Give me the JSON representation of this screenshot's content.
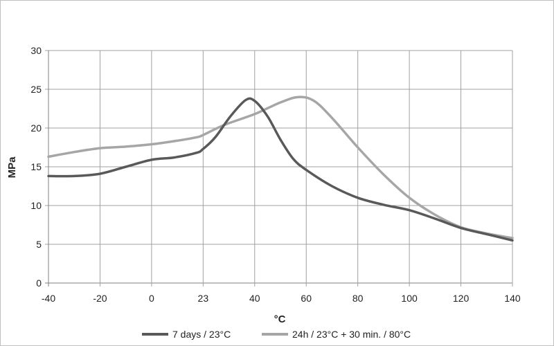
{
  "chart_data": {
    "type": "line",
    "title": "",
    "xlabel": "°C",
    "ylabel": "MPa",
    "xlim": [
      -40,
      140
    ],
    "ylim": [
      0,
      30
    ],
    "x_ticks": [
      -40,
      -20,
      0,
      23,
      40,
      60,
      80,
      100,
      120,
      140
    ],
    "y_ticks": [
      0,
      5,
      10,
      15,
      20,
      25,
      30
    ],
    "grid": true,
    "legend_position": "bottom",
    "series": [
      {
        "name": "7 days / 23°C",
        "color": "#595959",
        "points": [
          [
            -40,
            13.8
          ],
          [
            -30,
            13.8
          ],
          [
            -20,
            14.1
          ],
          [
            -10,
            15.0
          ],
          [
            0,
            15.9
          ],
          [
            10,
            16.2
          ],
          [
            20,
            16.8
          ],
          [
            23,
            17.3
          ],
          [
            27,
            18.8
          ],
          [
            32,
            21.5
          ],
          [
            37,
            23.6
          ],
          [
            40,
            23.5
          ],
          [
            45,
            21.5
          ],
          [
            50,
            18.5
          ],
          [
            55,
            16.0
          ],
          [
            60,
            14.6
          ],
          [
            70,
            12.5
          ],
          [
            80,
            11.0
          ],
          [
            90,
            10.1
          ],
          [
            100,
            9.4
          ],
          [
            110,
            8.3
          ],
          [
            120,
            7.1
          ],
          [
            130,
            6.3
          ],
          [
            140,
            5.5
          ]
        ]
      },
      {
        "name": "24h / 23°C + 30 min. / 80°C",
        "color": "#a6a6a6",
        "points": [
          [
            -40,
            16.3
          ],
          [
            -30,
            16.9
          ],
          [
            -20,
            17.4
          ],
          [
            -10,
            17.6
          ],
          [
            0,
            17.9
          ],
          [
            10,
            18.3
          ],
          [
            20,
            18.8
          ],
          [
            23,
            19.1
          ],
          [
            30,
            20.4
          ],
          [
            40,
            21.8
          ],
          [
            50,
            23.3
          ],
          [
            57,
            24.0
          ],
          [
            63,
            23.5
          ],
          [
            70,
            21.3
          ],
          [
            80,
            17.5
          ],
          [
            90,
            14.0
          ],
          [
            100,
            11.0
          ],
          [
            110,
            8.8
          ],
          [
            120,
            7.2
          ],
          [
            130,
            6.4
          ],
          [
            140,
            5.8
          ]
        ]
      }
    ]
  }
}
